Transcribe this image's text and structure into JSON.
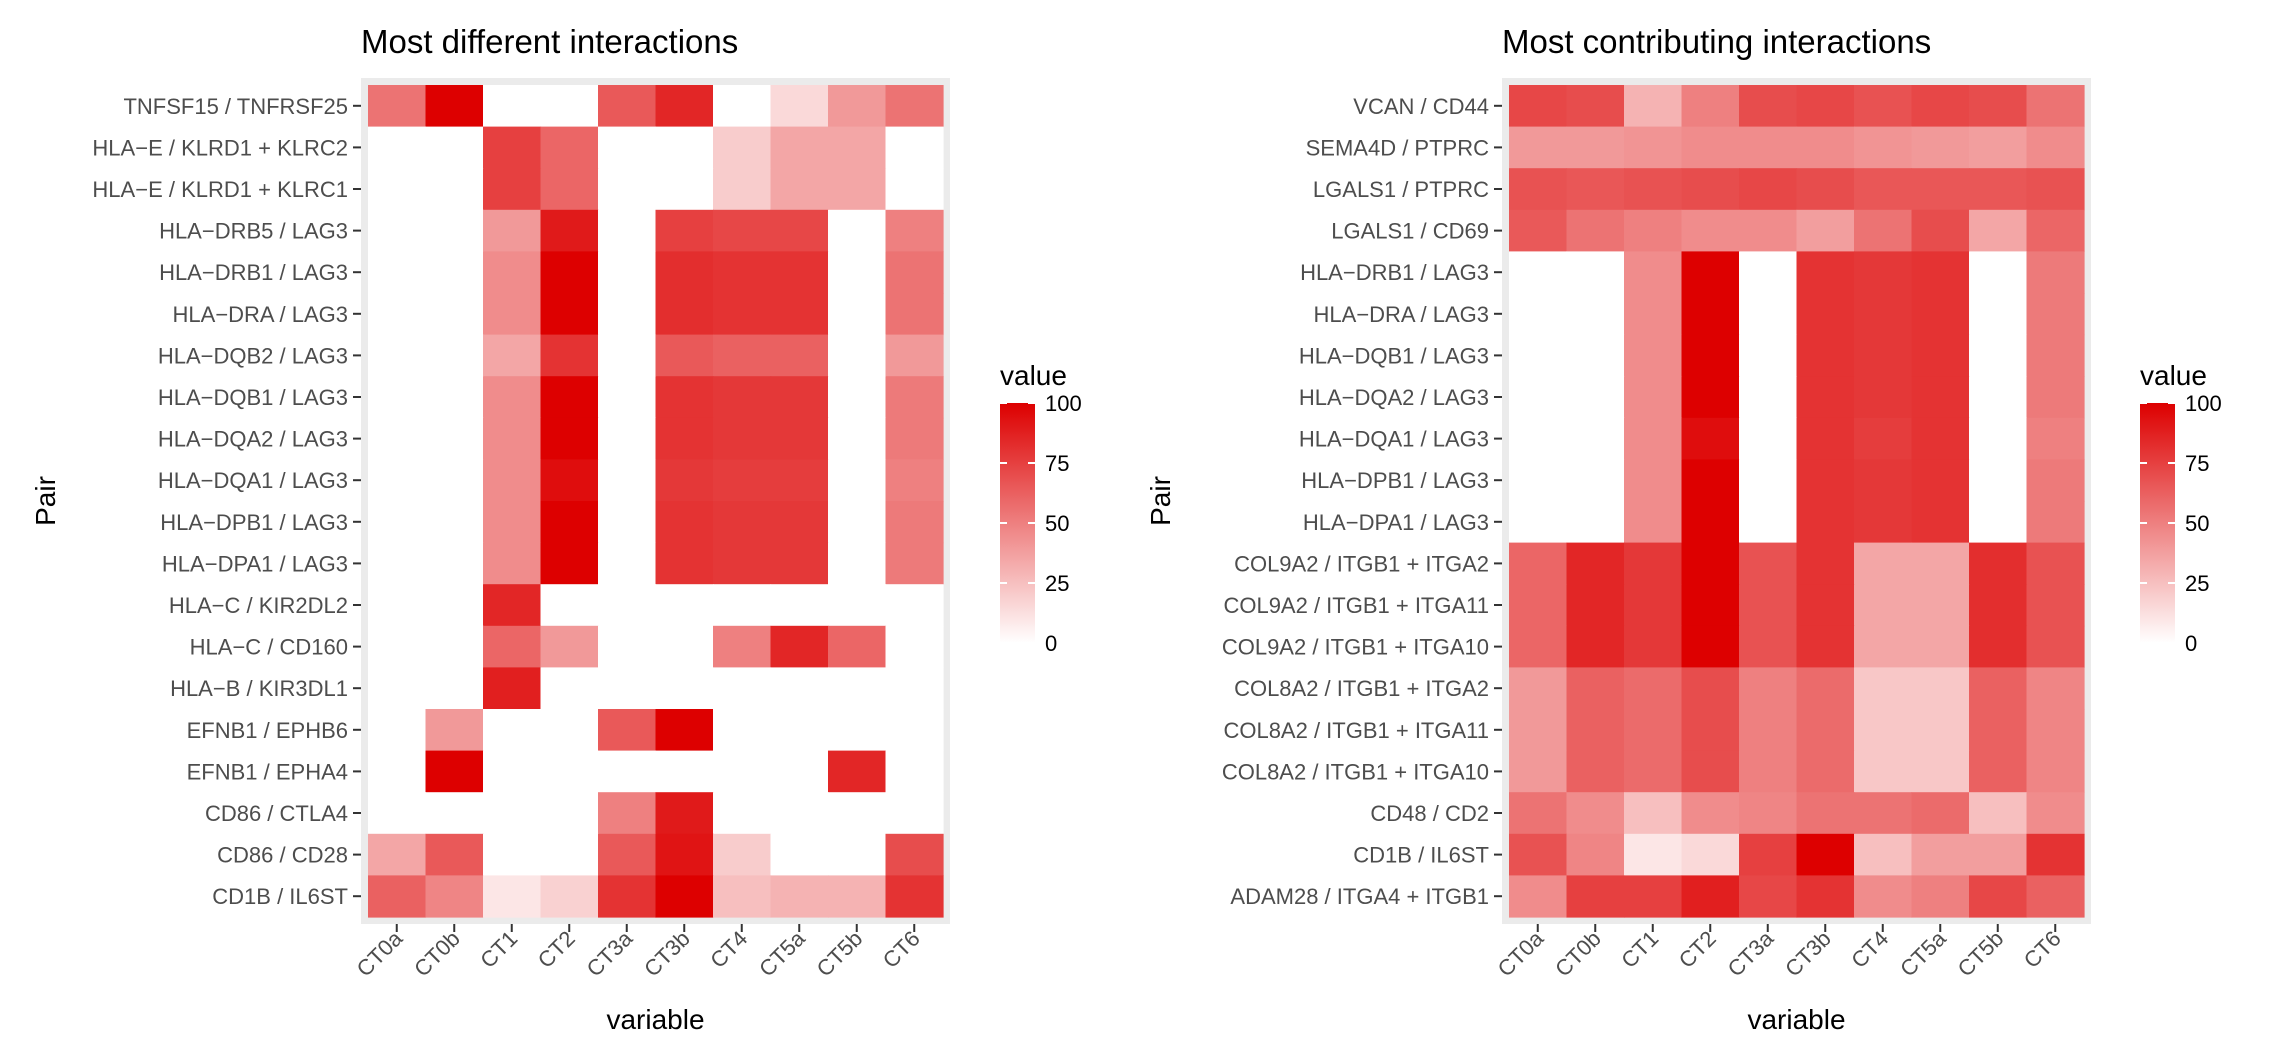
{
  "scale": {
    "name": "value",
    "min": 0,
    "max": 100,
    "low_color": "#ffffff",
    "high_color": "#dd0000",
    "breaks": [
      0,
      25,
      50,
      75,
      100
    ]
  },
  "chart_data": [
    {
      "type": "heatmap",
      "title": "Most different interactions",
      "xlabel": "variable",
      "ylabel": "Pair",
      "x": [
        "CT0a",
        "CT0b",
        "CT1",
        "CT2",
        "CT3a",
        "CT3b",
        "CT4",
        "CT5a",
        "CT5b",
        "CT6"
      ],
      "y": [
        "TNFSF15 / TNFRSF25",
        "HLA−E / KLRD1 + KLRC2",
        "HLA−E / KLRD1 + KLRC1",
        "HLA−DRB5 / LAG3",
        "HLA−DRB1 / LAG3",
        "HLA−DRA / LAG3",
        "HLA−DQB2 / LAG3",
        "HLA−DQB1 / LAG3",
        "HLA−DQA2 / LAG3",
        "HLA−DQA1 / LAG3",
        "HLA−DPB1 / LAG3",
        "HLA−DPA1 / LAG3",
        "HLA−C / KIR2DL2",
        "HLA−C / CD160",
        "HLA−B / KIR3DL1",
        "EFNB1 / EPHB6",
        "EFNB1 / EPHA4",
        "CD86 / CTLA4",
        "CD86 / CD28",
        "CD1B / IL6ST"
      ],
      "values": [
        [
          55,
          100,
          0,
          0,
          65,
          85,
          0,
          15,
          40,
          55
        ],
        [
          0,
          0,
          75,
          60,
          0,
          0,
          20,
          35,
          35,
          0
        ],
        [
          0,
          0,
          75,
          60,
          0,
          0,
          20,
          35,
          35,
          0
        ],
        [
          0,
          0,
          40,
          90,
          0,
          75,
          72,
          72,
          0,
          50
        ],
        [
          0,
          0,
          45,
          100,
          0,
          82,
          80,
          80,
          0,
          55
        ],
        [
          0,
          0,
          45,
          100,
          0,
          82,
          80,
          80,
          0,
          55
        ],
        [
          0,
          0,
          35,
          80,
          0,
          65,
          62,
          62,
          0,
          40
        ],
        [
          0,
          0,
          45,
          100,
          0,
          80,
          78,
          78,
          0,
          52
        ],
        [
          0,
          0,
          45,
          100,
          0,
          80,
          78,
          78,
          0,
          52
        ],
        [
          0,
          0,
          45,
          95,
          0,
          78,
          76,
          76,
          0,
          50
        ],
        [
          0,
          0,
          45,
          100,
          0,
          80,
          78,
          78,
          0,
          52
        ],
        [
          0,
          0,
          45,
          100,
          0,
          80,
          78,
          78,
          0,
          52
        ],
        [
          0,
          0,
          85,
          0,
          0,
          0,
          0,
          0,
          0,
          0
        ],
        [
          0,
          0,
          60,
          40,
          0,
          0,
          50,
          85,
          60,
          0
        ],
        [
          0,
          0,
          88,
          0,
          0,
          0,
          0,
          0,
          0,
          0
        ],
        [
          0,
          40,
          0,
          0,
          65,
          100,
          0,
          0,
          0,
          0
        ],
        [
          0,
          100,
          0,
          0,
          0,
          0,
          0,
          0,
          85,
          0
        ],
        [
          0,
          0,
          0,
          0,
          50,
          90,
          0,
          0,
          0,
          0
        ],
        [
          35,
          65,
          0,
          0,
          65,
          92,
          20,
          0,
          0,
          70
        ],
        [
          62,
          48,
          10,
          18,
          80,
          100,
          25,
          30,
          30,
          80
        ]
      ]
    },
    {
      "type": "heatmap",
      "title": "Most contributing interactions",
      "xlabel": "variable",
      "ylabel": "Pair",
      "x": [
        "CT0a",
        "CT0b",
        "CT1",
        "CT2",
        "CT3a",
        "CT3b",
        "CT4",
        "CT5a",
        "CT5b",
        "CT6"
      ],
      "y": [
        "VCAN / CD44",
        "SEMA4D / PTPRC",
        "LGALS1 / PTPRC",
        "LGALS1 / CD69",
        "HLA−DRB1 / LAG3",
        "HLA−DRA / LAG3",
        "HLA−DQB1 / LAG3",
        "HLA−DQA2 / LAG3",
        "HLA−DQA1 / LAG3",
        "HLA−DPB1 / LAG3",
        "HLA−DPA1 / LAG3",
        "COL9A2 / ITGB1 + ITGA2",
        "COL9A2 / ITGB1 + ITGA11",
        "COL9A2 / ITGB1 + ITGA10",
        "COL8A2 / ITGB1 + ITGA2",
        "COL8A2 / ITGB1 + ITGA11",
        "COL8A2 / ITGB1 + ITGA10",
        "CD48 / CD2",
        "CD1B / IL6ST",
        "ADAM28 / ITGA4 + ITGB1"
      ],
      "values": [
        [
          72,
          70,
          30,
          50,
          70,
          72,
          68,
          72,
          70,
          55
        ],
        [
          40,
          40,
          42,
          45,
          45,
          45,
          42,
          40,
          38,
          45
        ],
        [
          68,
          66,
          68,
          70,
          72,
          70,
          66,
          66,
          66,
          68
        ],
        [
          65,
          55,
          50,
          45,
          45,
          38,
          55,
          70,
          35,
          60
        ],
        [
          0,
          0,
          45,
          100,
          0,
          80,
          78,
          80,
          0,
          52
        ],
        [
          0,
          0,
          45,
          100,
          0,
          80,
          78,
          80,
          0,
          52
        ],
        [
          0,
          0,
          45,
          100,
          0,
          80,
          78,
          80,
          0,
          52
        ],
        [
          0,
          0,
          45,
          100,
          0,
          80,
          78,
          80,
          0,
          52
        ],
        [
          0,
          0,
          45,
          95,
          0,
          80,
          76,
          80,
          0,
          50
        ],
        [
          0,
          0,
          45,
          100,
          0,
          80,
          78,
          80,
          0,
          52
        ],
        [
          0,
          0,
          45,
          100,
          0,
          80,
          78,
          80,
          0,
          52
        ],
        [
          60,
          85,
          78,
          100,
          68,
          80,
          35,
          35,
          82,
          68
        ],
        [
          60,
          85,
          78,
          100,
          68,
          80,
          35,
          35,
          82,
          68
        ],
        [
          60,
          85,
          78,
          100,
          68,
          80,
          35,
          35,
          82,
          68
        ],
        [
          40,
          62,
          58,
          70,
          50,
          58,
          22,
          22,
          62,
          48
        ],
        [
          40,
          62,
          58,
          70,
          50,
          58,
          22,
          22,
          62,
          48
        ],
        [
          40,
          62,
          58,
          70,
          50,
          58,
          22,
          22,
          62,
          48
        ],
        [
          55,
          45,
          25,
          45,
          48,
          55,
          55,
          58,
          25,
          45
        ],
        [
          68,
          48,
          10,
          15,
          75,
          100,
          25,
          38,
          38,
          80
        ],
        [
          45,
          75,
          75,
          88,
          72,
          80,
          45,
          50,
          72,
          62
        ]
      ]
    }
  ]
}
